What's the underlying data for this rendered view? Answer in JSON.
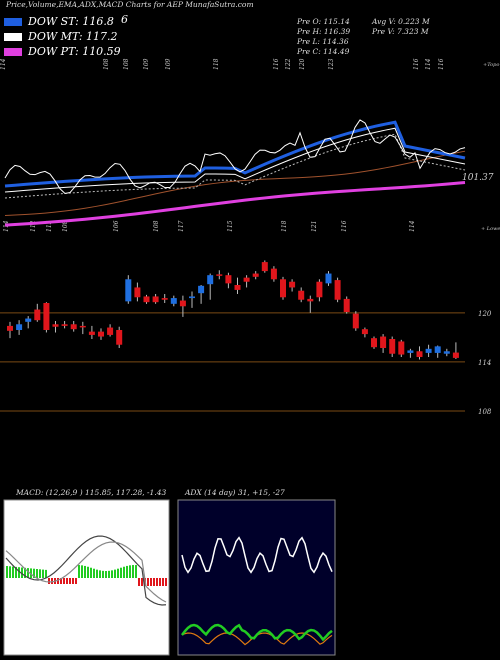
{
  "header": {
    "title": "Price,Volume,EMA,ADX,MACD Charts for AEP MunafaSutra.com"
  },
  "legend": [
    {
      "label": "DOW ST: 116.8",
      "color": "#1f5fe0"
    },
    {
      "label": "DOW MT: 117.2",
      "color": "#ffffff"
    },
    {
      "label": "DOW PT: 110.59",
      "color": "#e040e0"
    }
  ],
  "legend_extra": "6",
  "quote": {
    "pre_open": "Pre  O: 115.14",
    "pre_high": "Pre  H: 116.39",
    "pre_low": "Pre  L: 114.36",
    "pre_close": "Pre  C: 114.49",
    "avg_volume": "Avg V: 0.223 M",
    "pre_volume": "Pre  V: 7.323 M"
  },
  "panels": {
    "price_label_top": "+Topo",
    "price_label_bottom": "+ Lowes",
    "last_value_label": "101.37",
    "top_axis_labels": [
      "114",
      "108",
      "108",
      "109",
      "109",
      "118",
      "116",
      "122",
      "120",
      "123",
      "116",
      "114",
      "116"
    ],
    "bottom_axis_labels": [
      "114",
      "112",
      "113",
      "108",
      "106",
      "108",
      "117",
      "115",
      "118",
      "121",
      "116",
      "114"
    ],
    "right_levels": [
      "120",
      "114",
      "108"
    ],
    "macd_header": "MACD: (12,26,9 ) 115.85,  117.28, -1.43",
    "adx_header": "ADX        (14  day) 31,  +15,  -27"
  },
  "chart_data": {
    "type": "candlestick",
    "title": "Price,Volume,EMA,ADX,MACD Charts for AEP MunafaSutra.com",
    "series": [
      {
        "name": "candles",
        "values": [
          {
            "o": 118.4,
            "h": 118.9,
            "l": 116.9,
            "c": 117.8
          },
          {
            "o": 117.9,
            "h": 119.1,
            "l": 117.3,
            "c": 118.6
          },
          {
            "o": 118.9,
            "h": 119.6,
            "l": 118.1,
            "c": 119.3
          },
          {
            "o": 120.4,
            "h": 121.1,
            "l": 118.9,
            "c": 119.1
          },
          {
            "o": 121.2,
            "h": 121.3,
            "l": 117.6,
            "c": 117.9
          },
          {
            "o": 118.6,
            "h": 119.0,
            "l": 117.6,
            "c": 118.3
          },
          {
            "o": 118.6,
            "h": 119.0,
            "l": 118.1,
            "c": 118.4
          },
          {
            "o": 118.6,
            "h": 119.0,
            "l": 117.7,
            "c": 118.0
          },
          {
            "o": 118.4,
            "h": 118.9,
            "l": 117.4,
            "c": 118.3
          },
          {
            "o": 117.7,
            "h": 118.4,
            "l": 116.8,
            "c": 117.3
          },
          {
            "o": 117.7,
            "h": 118.1,
            "l": 116.7,
            "c": 117.1
          },
          {
            "o": 118.2,
            "h": 118.6,
            "l": 117.1,
            "c": 117.3
          },
          {
            "o": 117.9,
            "h": 118.3,
            "l": 115.7,
            "c": 116.1
          },
          {
            "o": 121.4,
            "h": 124.6,
            "l": 121.1,
            "c": 124.1
          },
          {
            "o": 123.1,
            "h": 123.7,
            "l": 121.4,
            "c": 121.9
          },
          {
            "o": 122.0,
            "h": 122.2,
            "l": 121.1,
            "c": 121.3
          },
          {
            "o": 122.0,
            "h": 122.3,
            "l": 121.1,
            "c": 121.3
          },
          {
            "o": 121.8,
            "h": 122.3,
            "l": 121.2,
            "c": 121.6
          },
          {
            "o": 121.1,
            "h": 122.1,
            "l": 120.8,
            "c": 121.8
          },
          {
            "o": 121.5,
            "h": 122.1,
            "l": 119.5,
            "c": 120.8
          },
          {
            "o": 121.8,
            "h": 122.6,
            "l": 120.6,
            "c": 122.0
          },
          {
            "o": 122.4,
            "h": 123.4,
            "l": 121.1,
            "c": 123.3
          },
          {
            "o": 123.5,
            "h": 124.8,
            "l": 121.6,
            "c": 124.6
          },
          {
            "o": 124.7,
            "h": 125.2,
            "l": 124.1,
            "c": 124.6
          },
          {
            "o": 124.6,
            "h": 124.9,
            "l": 123.0,
            "c": 123.6
          },
          {
            "o": 123.4,
            "h": 124.3,
            "l": 122.3,
            "c": 122.8
          },
          {
            "o": 124.3,
            "h": 124.6,
            "l": 123.1,
            "c": 123.8
          },
          {
            "o": 124.8,
            "h": 125.1,
            "l": 124.1,
            "c": 124.4
          },
          {
            "o": 126.2,
            "h": 126.4,
            "l": 124.9,
            "c": 125.1
          },
          {
            "o": 125.4,
            "h": 125.7,
            "l": 123.8,
            "c": 124.1
          },
          {
            "o": 124.1,
            "h": 124.4,
            "l": 121.6,
            "c": 121.9
          },
          {
            "o": 123.8,
            "h": 124.1,
            "l": 122.6,
            "c": 123.1
          },
          {
            "o": 122.7,
            "h": 123.1,
            "l": 121.3,
            "c": 121.6
          },
          {
            "o": 121.7,
            "h": 122.1,
            "l": 120.0,
            "c": 121.4
          },
          {
            "o": 123.8,
            "h": 124.1,
            "l": 121.4,
            "c": 121.9
          },
          {
            "o": 123.6,
            "h": 125.1,
            "l": 123.3,
            "c": 124.8
          },
          {
            "o": 124.0,
            "h": 124.3,
            "l": 121.3,
            "c": 121.6
          },
          {
            "o": 121.7,
            "h": 122.0,
            "l": 119.9,
            "c": 120.1
          },
          {
            "o": 119.9,
            "h": 120.2,
            "l": 117.8,
            "c": 118.1
          },
          {
            "o": 118.0,
            "h": 118.2,
            "l": 117.0,
            "c": 117.4
          },
          {
            "o": 116.9,
            "h": 117.1,
            "l": 115.6,
            "c": 115.8
          },
          {
            "o": 117.1,
            "h": 117.4,
            "l": 115.1,
            "c": 115.7
          },
          {
            "o": 116.8,
            "h": 117.1,
            "l": 114.6,
            "c": 115.0
          },
          {
            "o": 116.5,
            "h": 116.7,
            "l": 114.6,
            "c": 114.9
          },
          {
            "o": 115.1,
            "h": 115.6,
            "l": 114.5,
            "c": 115.4
          },
          {
            "o": 115.3,
            "h": 115.9,
            "l": 114.3,
            "c": 114.6
          },
          {
            "o": 115.1,
            "h": 116.1,
            "l": 114.6,
            "c": 115.6
          },
          {
            "o": 115.1,
            "h": 116.0,
            "l": 114.5,
            "c": 115.9
          },
          {
            "o": 115.0,
            "h": 115.6,
            "l": 114.7,
            "c": 115.3
          },
          {
            "o": 115.14,
            "h": 116.39,
            "l": 114.36,
            "c": 114.49
          }
        ]
      }
    ],
    "ylim": [
      106.9,
      128.9
    ],
    "grid": false
  },
  "colors": {
    "bull": "#1f6fe0",
    "bear": "#e0161c",
    "level": "#7a4a14",
    "ema_pt": "#e040e0",
    "ema_st": "#1f5fe0",
    "macd_hist": "#22cc22",
    "adx_main": "#ffffff",
    "adx_plus": "#22cc22",
    "adx_minus": "#e07a10"
  }
}
